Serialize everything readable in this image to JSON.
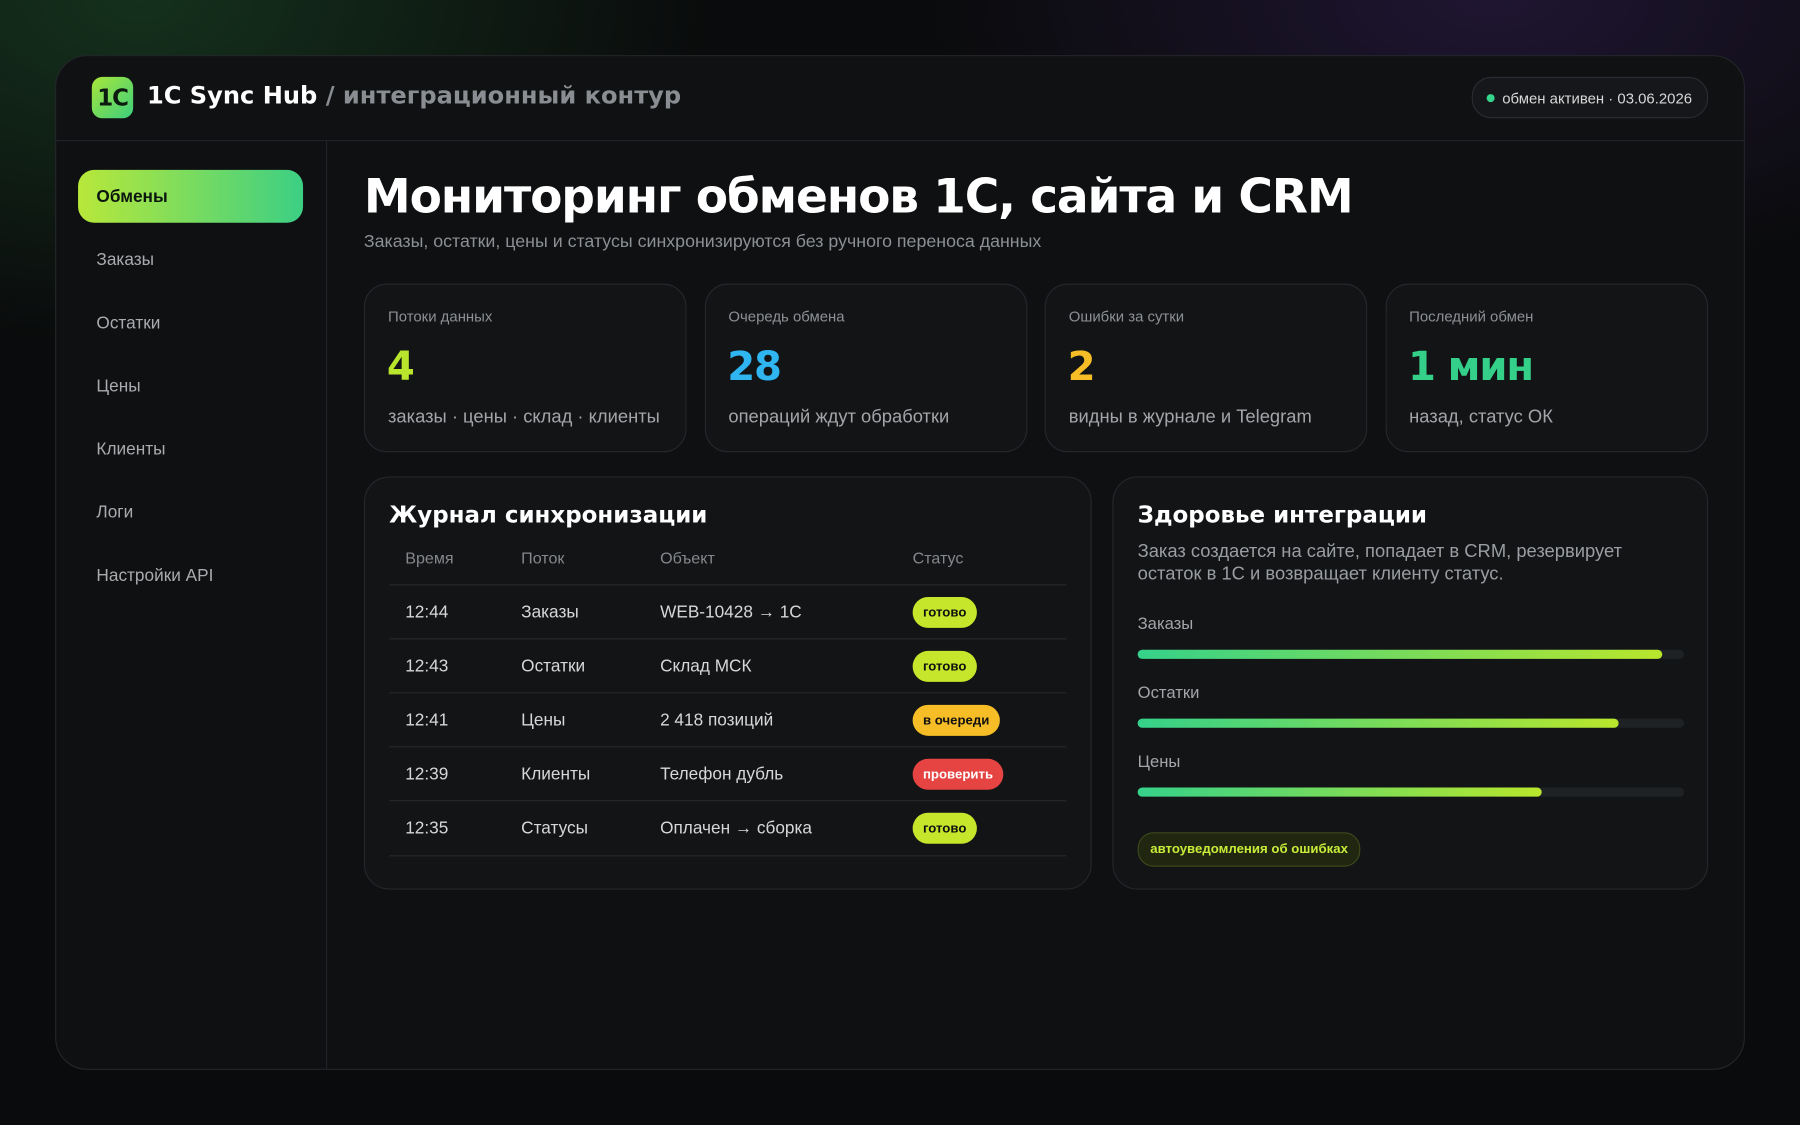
{
  "header": {
    "logo": "1C",
    "title": "1C Sync Hub",
    "subtitle": "/ интеграционный контур",
    "status": "обмен активен · 03.06.2026"
  },
  "sidebar": {
    "items": [
      "Обмены",
      "Заказы",
      "Остатки",
      "Цены",
      "Клиенты",
      "Логи",
      "Настройки API"
    ],
    "active": 0
  },
  "page": {
    "title": "Мониторинг обменов 1С, сайта и CRM",
    "subtitle": "Заказы, остатки, цены и статусы синхронизируются без ручного переноса данных"
  },
  "stats": [
    {
      "label": "Потоки данных",
      "value": "4",
      "note": "заказы · цены · склад · клиенты",
      "color": "#b9e62c"
    },
    {
      "label": "Очередь обмена",
      "value": "28",
      "note": "операций ждут обработки",
      "color": "#2fb5f0"
    },
    {
      "label": "Ошибки за сутки",
      "value": "2",
      "note": "видны в журнале и Telegram",
      "color": "#f6bd27"
    },
    {
      "label": "Последний обмен",
      "value": "1 мин",
      "note": "назад, статус ОК",
      "color": "#34d08a"
    }
  ],
  "journal": {
    "title": "Журнал синхронизации",
    "columns": [
      "Время",
      "Поток",
      "Объект",
      "Статус"
    ],
    "rows": [
      {
        "time": "12:44",
        "flow": "Заказы",
        "object": "WEB-10428 → 1С",
        "status": "готово",
        "status_color": "#c5e62a",
        "status_text_color": "#111"
      },
      {
        "time": "12:43",
        "flow": "Остатки",
        "object": "Склад МСК",
        "status": "готово",
        "status_color": "#c5e62a",
        "status_text_color": "#111"
      },
      {
        "time": "12:41",
        "flow": "Цены",
        "object": "2 418 позиций",
        "status": "в очереди",
        "status_color": "#f6bd27",
        "status_text_color": "#111"
      },
      {
        "time": "12:39",
        "flow": "Клиенты",
        "object": "Телефон дубль",
        "status": "проверить",
        "status_color": "#e64343",
        "status_text_color": "#fff"
      },
      {
        "time": "12:35",
        "flow": "Статусы",
        "object": "Оплачен → сборка",
        "status": "готово",
        "status_color": "#c5e62a",
        "status_text_color": "#111"
      }
    ]
  },
  "health": {
    "title": "Здоровье интеграции",
    "description": "Заказ создается на сайте, попадает в CRM, резервирует остаток в 1С и возвращает клиенту статус.",
    "bars": [
      {
        "label": "Заказы",
        "value": 96
      },
      {
        "label": "Остатки",
        "value": 88
      },
      {
        "label": "Цены",
        "value": 74
      }
    ],
    "chip": "автоуведомления об ошибках"
  }
}
